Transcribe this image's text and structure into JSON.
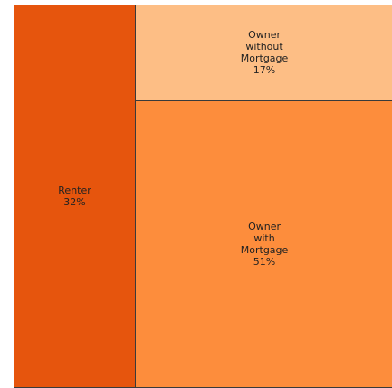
{
  "chart_data": {
    "type": "treemap",
    "categories": [
      "Renter",
      "Owner without Mortgage",
      "Owner with Mortgage"
    ],
    "values": [
      32,
      17,
      51
    ],
    "value_labels": [
      "32%",
      "17%",
      "51%"
    ],
    "colors": [
      "#e6550d",
      "#fdbe85",
      "#fd8d3c"
    ]
  }
}
